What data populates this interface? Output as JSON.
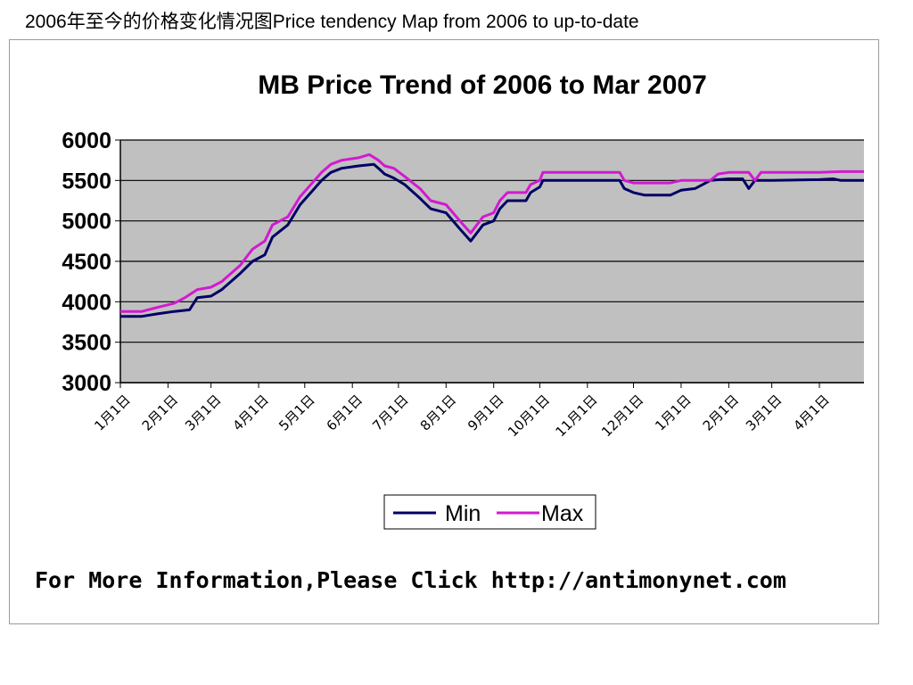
{
  "page": {
    "heading": "2006年至今的价格变化情况图Price tendency Map from 2006 to up-to-date"
  },
  "chart_data": {
    "type": "line",
    "title": "MB Price Trend of 2006 to Mar 2007",
    "xlabel": "",
    "ylabel": "",
    "ylim": [
      3000,
      6000
    ],
    "yticks": [
      6000,
      5500,
      5000,
      4500,
      4000,
      3500,
      3000
    ],
    "xlim": [
      "2006-01-01",
      "2007-04-30"
    ],
    "x_ticks": [
      {
        "label": "1月1日",
        "date": "2006-01-01"
      },
      {
        "label": "2月1日",
        "date": "2006-02-01"
      },
      {
        "label": "3月1日",
        "date": "2006-03-01"
      },
      {
        "label": "4月1日",
        "date": "2006-04-01"
      },
      {
        "label": "5月1日",
        "date": "2006-05-01"
      },
      {
        "label": "6月1日",
        "date": "2006-06-01"
      },
      {
        "label": "7月1日",
        "date": "2006-07-01"
      },
      {
        "label": "8月1日",
        "date": "2006-08-01"
      },
      {
        "label": "9月1日",
        "date": "2006-09-01"
      },
      {
        "label": "10月1日",
        "date": "2006-10-01"
      },
      {
        "label": "11月1日",
        "date": "2006-11-01"
      },
      {
        "label": "12月1日",
        "date": "2006-12-01"
      },
      {
        "label": "1月1日",
        "date": "2007-01-01"
      },
      {
        "label": "2月1日",
        "date": "2007-02-01"
      },
      {
        "label": "3月1日",
        "date": "2007-03-01"
      },
      {
        "label": "4月1日",
        "date": "2007-04-01"
      }
    ],
    "series": [
      {
        "name": "Min",
        "color": "#000066",
        "points": [
          [
            "2006-01-01",
            3820
          ],
          [
            "2006-01-15",
            3820
          ],
          [
            "2006-01-25",
            3850
          ],
          [
            "2006-02-05",
            3880
          ],
          [
            "2006-02-15",
            3900
          ],
          [
            "2006-02-20",
            4050
          ],
          [
            "2006-03-01",
            4070
          ],
          [
            "2006-03-08",
            4150
          ],
          [
            "2006-03-20",
            4350
          ],
          [
            "2006-03-28",
            4500
          ],
          [
            "2006-04-05",
            4580
          ],
          [
            "2006-04-10",
            4800
          ],
          [
            "2006-04-20",
            4950
          ],
          [
            "2006-04-28",
            5200
          ],
          [
            "2006-05-05",
            5350
          ],
          [
            "2006-05-12",
            5500
          ],
          [
            "2006-05-18",
            5600
          ],
          [
            "2006-05-25",
            5650
          ],
          [
            "2006-06-05",
            5680
          ],
          [
            "2006-06-15",
            5700
          ],
          [
            "2006-06-18",
            5650
          ],
          [
            "2006-06-22",
            5580
          ],
          [
            "2006-06-28",
            5530
          ],
          [
            "2006-07-05",
            5450
          ],
          [
            "2006-07-15",
            5280
          ],
          [
            "2006-07-22",
            5150
          ],
          [
            "2006-08-01",
            5100
          ],
          [
            "2006-08-10",
            4900
          ],
          [
            "2006-08-17",
            4750
          ],
          [
            "2006-08-25",
            4950
          ],
          [
            "2006-09-01",
            5000
          ],
          [
            "2006-09-05",
            5150
          ],
          [
            "2006-09-10",
            5250
          ],
          [
            "2006-09-22",
            5250
          ],
          [
            "2006-09-25",
            5350
          ],
          [
            "2006-10-01",
            5420
          ],
          [
            "2006-10-03",
            5500
          ],
          [
            "2006-10-15",
            5500
          ],
          [
            "2006-11-01",
            5500
          ],
          [
            "2006-11-15",
            5500
          ],
          [
            "2006-11-22",
            5500
          ],
          [
            "2006-11-25",
            5400
          ],
          [
            "2006-12-01",
            5350
          ],
          [
            "2006-12-08",
            5320
          ],
          [
            "2006-12-25",
            5320
          ],
          [
            "2007-01-01",
            5380
          ],
          [
            "2007-01-10",
            5400
          ],
          [
            "2007-01-15",
            5450
          ],
          [
            "2007-01-20",
            5500
          ],
          [
            "2007-02-01",
            5520
          ],
          [
            "2007-02-10",
            5520
          ],
          [
            "2007-02-14",
            5400
          ],
          [
            "2007-02-18",
            5500
          ],
          [
            "2007-03-01",
            5500
          ],
          [
            "2007-04-01",
            5510
          ],
          [
            "2007-04-10",
            5520
          ],
          [
            "2007-04-15",
            5500
          ],
          [
            "2007-04-30",
            5500
          ]
        ]
      },
      {
        "name": "Max",
        "color": "#d11ad1",
        "points": [
          [
            "2006-01-01",
            3880
          ],
          [
            "2006-01-15",
            3880
          ],
          [
            "2006-01-25",
            3930
          ],
          [
            "2006-02-05",
            3980
          ],
          [
            "2006-02-12",
            4050
          ],
          [
            "2006-02-20",
            4150
          ],
          [
            "2006-03-01",
            4180
          ],
          [
            "2006-03-08",
            4250
          ],
          [
            "2006-03-20",
            4450
          ],
          [
            "2006-03-28",
            4650
          ],
          [
            "2006-04-05",
            4750
          ],
          [
            "2006-04-10",
            4950
          ],
          [
            "2006-04-20",
            5050
          ],
          [
            "2006-04-28",
            5300
          ],
          [
            "2006-05-05",
            5450
          ],
          [
            "2006-05-12",
            5600
          ],
          [
            "2006-05-18",
            5700
          ],
          [
            "2006-05-25",
            5750
          ],
          [
            "2006-06-05",
            5780
          ],
          [
            "2006-06-12",
            5820
          ],
          [
            "2006-06-18",
            5750
          ],
          [
            "2006-06-22",
            5680
          ],
          [
            "2006-06-28",
            5650
          ],
          [
            "2006-07-05",
            5550
          ],
          [
            "2006-07-15",
            5400
          ],
          [
            "2006-07-22",
            5250
          ],
          [
            "2006-08-01",
            5200
          ],
          [
            "2006-08-10",
            5000
          ],
          [
            "2006-08-17",
            4850
          ],
          [
            "2006-08-25",
            5050
          ],
          [
            "2006-09-01",
            5100
          ],
          [
            "2006-09-05",
            5250
          ],
          [
            "2006-09-10",
            5350
          ],
          [
            "2006-09-22",
            5350
          ],
          [
            "2006-09-25",
            5450
          ],
          [
            "2006-10-01",
            5500
          ],
          [
            "2006-10-03",
            5600
          ],
          [
            "2006-10-15",
            5600
          ],
          [
            "2006-11-01",
            5600
          ],
          [
            "2006-11-22",
            5600
          ],
          [
            "2006-11-25",
            5500
          ],
          [
            "2006-12-01",
            5470
          ],
          [
            "2006-12-25",
            5470
          ],
          [
            "2007-01-01",
            5500
          ],
          [
            "2007-01-20",
            5500
          ],
          [
            "2007-01-25",
            5580
          ],
          [
            "2007-02-01",
            5600
          ],
          [
            "2007-02-14",
            5600
          ],
          [
            "2007-02-18",
            5500
          ],
          [
            "2007-02-22",
            5600
          ],
          [
            "2007-03-01",
            5600
          ],
          [
            "2007-04-01",
            5600
          ],
          [
            "2007-04-15",
            5610
          ],
          [
            "2007-04-30",
            5610
          ]
        ]
      }
    ],
    "legend": {
      "position": "bottom",
      "entries": [
        "Min",
        "Max"
      ]
    },
    "grid": true,
    "plot_background": "#c0c0c0",
    "footer": "For More Information,Please Click http://antimonynet.com"
  }
}
